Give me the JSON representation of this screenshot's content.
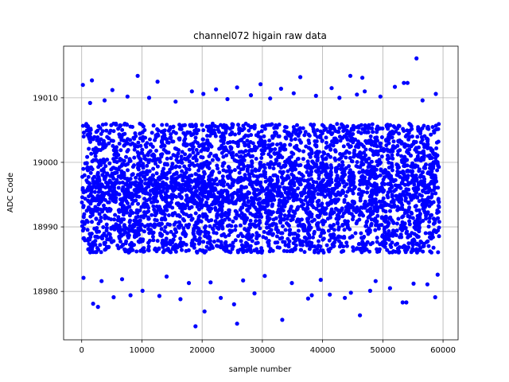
{
  "chart_data": {
    "type": "scatter",
    "title": "channel072 higain raw data",
    "xlabel": "sample number",
    "ylabel": "ADC Code",
    "xlim": [
      -3000,
      62500
    ],
    "ylim": [
      18972.5,
      19018
    ],
    "xticks": [
      0,
      10000,
      20000,
      30000,
      40000,
      50000,
      60000
    ],
    "yticks": [
      18980,
      18990,
      19000,
      19010
    ],
    "grid": true,
    "marker_color": "#0000ff",
    "series": [
      {
        "points_summary": {
          "x_range": [
            0,
            59400
          ],
          "dense_band": [
            18986,
            19006
          ],
          "median": 18996
        },
        "points": [
          [
            200,
            19012
          ],
          [
            1700,
            19012.7
          ],
          [
            9300,
            19013.4
          ],
          [
            12600,
            19012.5
          ],
          [
            36300,
            19013.2
          ],
          [
            44600,
            19013.4
          ],
          [
            46600,
            19013.1
          ],
          [
            55600,
            19016.1
          ],
          [
            53500,
            19012.3
          ],
          [
            54100,
            19012.3
          ],
          [
            52000,
            19011.7
          ],
          [
            5100,
            19011.2
          ],
          [
            22300,
            19011.3
          ],
          [
            25800,
            19011.6
          ],
          [
            29700,
            19012.1
          ],
          [
            41500,
            19011.5
          ],
          [
            33100,
            19011.4
          ],
          [
            18300,
            19011.0
          ],
          [
            47000,
            19011.0
          ],
          [
            58800,
            19010.6
          ],
          [
            1400,
            19009.2
          ],
          [
            3800,
            19009.6
          ],
          [
            7600,
            19010.2
          ],
          [
            11200,
            19010.0
          ],
          [
            15600,
            19009.4
          ],
          [
            20200,
            19010.6
          ],
          [
            24200,
            19009.8
          ],
          [
            28100,
            19010.4
          ],
          [
            31300,
            19009.9
          ],
          [
            35200,
            19010.7
          ],
          [
            38900,
            19010.3
          ],
          [
            42800,
            19010.0
          ],
          [
            45700,
            19010.5
          ],
          [
            49600,
            19010.2
          ],
          [
            56600,
            19009.6
          ],
          [
            18900,
            18974.6
          ],
          [
            25800,
            18975.0
          ],
          [
            33300,
            18975.6
          ],
          [
            46200,
            18976.3
          ],
          [
            25300,
            18978.0
          ],
          [
            20400,
            18976.9
          ],
          [
            1900,
            18978.1
          ],
          [
            2700,
            18977.6
          ],
          [
            5300,
            18979.1
          ],
          [
            16400,
            18978.8
          ],
          [
            12900,
            18979.3
          ],
          [
            8100,
            18979.4
          ],
          [
            10100,
            18980.1
          ],
          [
            23100,
            18979.0
          ],
          [
            28700,
            18979.7
          ],
          [
            37600,
            18978.9
          ],
          [
            38200,
            18979.4
          ],
          [
            43700,
            18979.0
          ],
          [
            44700,
            18979.8
          ],
          [
            47900,
            18980.1
          ],
          [
            53300,
            18978.3
          ],
          [
            53900,
            18978.3
          ],
          [
            58700,
            18979.1
          ],
          [
            51200,
            18980.5
          ],
          [
            41200,
            18979.5
          ],
          [
            300,
            18982.1
          ],
          [
            3300,
            18981.6
          ],
          [
            6700,
            18981.9
          ],
          [
            14100,
            18982.3
          ],
          [
            17800,
            18981.3
          ],
          [
            21400,
            18981.4
          ],
          [
            26800,
            18981.7
          ],
          [
            30400,
            18982.4
          ],
          [
            34900,
            18981.3
          ],
          [
            39700,
            18981.8
          ],
          [
            48800,
            18981.6
          ],
          [
            55100,
            18981.2
          ],
          [
            57400,
            18981.1
          ],
          [
            59100,
            18982.6
          ]
        ]
      }
    ]
  }
}
